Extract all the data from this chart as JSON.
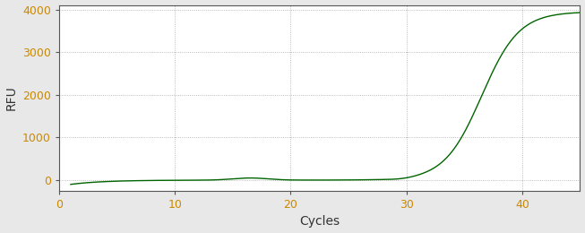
{
  "xlabel": "Cycles",
  "ylabel": "RFU",
  "xlim": [
    0,
    45
  ],
  "ylim": [
    -250,
    4100
  ],
  "yticks": [
    0,
    1000,
    2000,
    3000,
    4000
  ],
  "xticks": [
    0,
    10,
    20,
    30,
    40
  ],
  "line_color": "#006400",
  "background_color": "#e8e8e8",
  "plot_bg_color": "#ffffff",
  "spine_color": "#555555",
  "tick_label_color": "#cc8800",
  "axis_label_color": "#333333",
  "grid_color": "#000000",
  "grid_alpha": 0.35,
  "xlabel_fontsize": 10,
  "ylabel_fontsize": 10,
  "tick_fontsize": 9,
  "sigmoid_L": 3950,
  "sigmoid_k": 0.62,
  "sigmoid_x0": 36.5
}
